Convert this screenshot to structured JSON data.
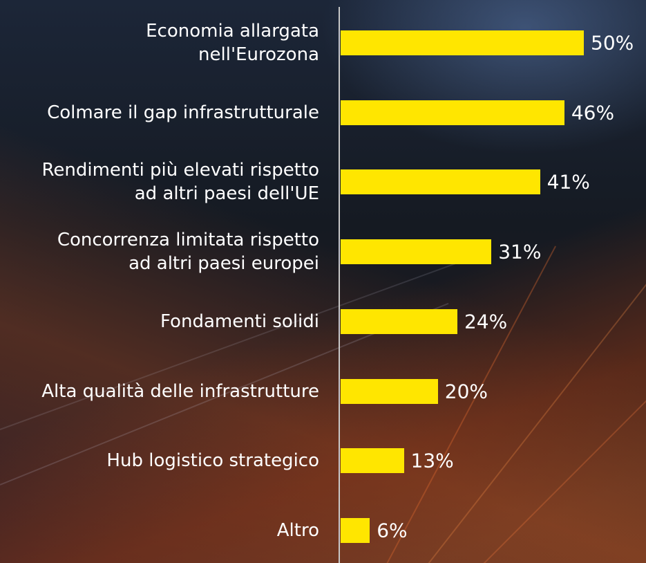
{
  "chart_data": {
    "type": "bar",
    "orientation": "horizontal",
    "color": "#ffe600",
    "categories": [
      "Economia allargata\nnell'Eurozona",
      "Colmare il gap infrastrutturale",
      "Rendimenti più elevati rispetto\nad altri paesi dell'UE",
      "Concorrenza limitata rispetto\nad altri paesi europei",
      "Fondamenti solidi",
      "Alta qualità delle infrastrutture",
      "Hub logistico strategico",
      "Altro"
    ],
    "values": [
      50,
      46,
      41,
      31,
      24,
      20,
      13,
      6
    ],
    "value_labels": [
      "50%",
      "46%",
      "41%",
      "31%",
      "24%",
      "20%",
      "13%",
      "6%"
    ]
  }
}
